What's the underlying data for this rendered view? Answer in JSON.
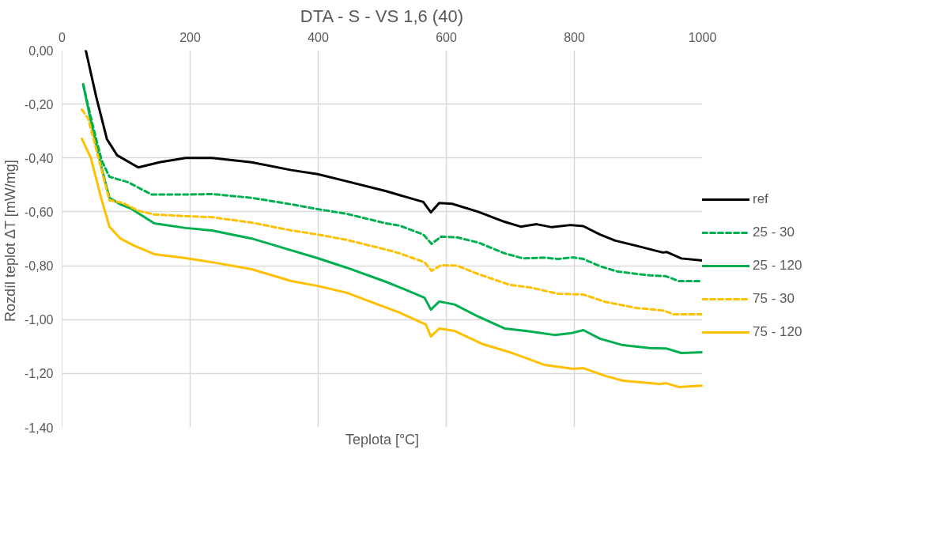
{
  "chart_data": {
    "type": "line",
    "title": "DTA - S - VS 1,6 (40)",
    "xlabel": "Teplota [°C]",
    "ylabel": "Rozdíl teplot ΔT  [mW/mg]",
    "xlim": [
      0,
      1000
    ],
    "xticks": [
      0,
      200,
      400,
      600,
      800,
      1000
    ],
    "ylim": [
      -1.4,
      0
    ],
    "yticks": [
      {
        "value": -1.4,
        "label": "-1,40"
      },
      {
        "value": -1.2,
        "label": "-1,20"
      },
      {
        "value": -1.0,
        "label": "-1,00"
      },
      {
        "value": -0.8,
        "label": "-0,80"
      },
      {
        "value": -0.6,
        "label": "-0,60"
      },
      {
        "value": -0.4,
        "label": "-0,40"
      },
      {
        "value": -0.2,
        "label": "-0,20"
      },
      {
        "value": 0,
        "label": "0,00"
      }
    ],
    "grid": true,
    "legend": "right",
    "marker": "none",
    "series": [
      {
        "name": "ref",
        "color": "#000000",
        "line_style": "solid",
        "x": [
          37,
          53,
          70,
          86,
          119,
          152,
          193,
          234,
          296,
          358,
          399,
          440,
          506,
          527,
          564,
          576,
          589,
          609,
          650,
          691,
          716,
          741,
          765,
          794,
          814,
          840,
          864,
          897,
          938,
          944,
          967,
          1000
        ],
        "values": [
          0.0,
          -0.17,
          -0.33,
          -0.39,
          -0.435,
          -0.416,
          -0.4,
          -0.4,
          -0.416,
          -0.445,
          -0.46,
          -0.484,
          -0.523,
          -0.538,
          -0.563,
          -0.602,
          -0.567,
          -0.57,
          -0.6,
          -0.637,
          -0.655,
          -0.646,
          -0.657,
          -0.649,
          -0.653,
          -0.684,
          -0.707,
          -0.726,
          -0.751,
          -0.749,
          -0.773,
          -0.781
        ]
      },
      {
        "name": "25 - 30",
        "color": "#00b050",
        "line_style": "dashed",
        "x": [
          33,
          49,
          62,
          74,
          103,
          140,
          193,
          234,
          296,
          358,
          399,
          444,
          506,
          527,
          564,
          577,
          592,
          617,
          650,
          691,
          720,
          753,
          774,
          798,
          814,
          840,
          868,
          918,
          943,
          963,
          1000
        ],
        "values": [
          -0.127,
          -0.29,
          -0.41,
          -0.47,
          -0.49,
          -0.536,
          -0.536,
          -0.534,
          -0.548,
          -0.572,
          -0.59,
          -0.607,
          -0.643,
          -0.651,
          -0.684,
          -0.719,
          -0.692,
          -0.695,
          -0.714,
          -0.754,
          -0.773,
          -0.77,
          -0.775,
          -0.769,
          -0.775,
          -0.802,
          -0.822,
          -0.836,
          -0.839,
          -0.857,
          -0.857
        ]
      },
      {
        "name": "25 - 120",
        "color": "#00b050",
        "line_style": "solid",
        "x": [
          33,
          45,
          62,
          74,
          91,
          107,
          144,
          193,
          234,
          296,
          358,
          399,
          444,
          506,
          527,
          566,
          576,
          589,
          613,
          650,
          691,
          724,
          769,
          794,
          814,
          840,
          876,
          918,
          943,
          967,
          1000
        ],
        "values": [
          -0.127,
          -0.264,
          -0.44,
          -0.548,
          -0.572,
          -0.587,
          -0.643,
          -0.66,
          -0.669,
          -0.699,
          -0.743,
          -0.772,
          -0.807,
          -0.86,
          -0.88,
          -0.919,
          -0.963,
          -0.933,
          -0.944,
          -0.989,
          -1.033,
          -1.042,
          -1.057,
          -1.051,
          -1.039,
          -1.071,
          -1.095,
          -1.106,
          -1.107,
          -1.124,
          -1.121
        ]
      },
      {
        "name": "75 - 30",
        "color": "#ffc000",
        "line_style": "dashed",
        "x": [
          31,
          41,
          58,
          74,
          95,
          119,
          144,
          193,
          234,
          296,
          358,
          399,
          444,
          506,
          527,
          566,
          577,
          592,
          617,
          650,
          699,
          732,
          774,
          814,
          848,
          897,
          938,
          955,
          1000
        ],
        "values": [
          -0.22,
          -0.255,
          -0.41,
          -0.557,
          -0.567,
          -0.596,
          -0.61,
          -0.616,
          -0.62,
          -0.64,
          -0.669,
          -0.684,
          -0.704,
          -0.74,
          -0.754,
          -0.787,
          -0.819,
          -0.798,
          -0.8,
          -0.831,
          -0.871,
          -0.881,
          -0.904,
          -0.907,
          -0.934,
          -0.957,
          -0.966,
          -0.98,
          -0.98
        ]
      },
      {
        "name": "75 - 120",
        "color": "#ffc000",
        "line_style": "solid",
        "x": [
          31,
          45,
          62,
          74,
          91,
          111,
          144,
          193,
          234,
          296,
          358,
          399,
          444,
          527,
          568,
          576,
          589,
          613,
          658,
          699,
          753,
          798,
          814,
          848,
          876,
          934,
          943,
          963,
          1000
        ],
        "values": [
          -0.329,
          -0.4,
          -0.557,
          -0.655,
          -0.699,
          -0.724,
          -0.757,
          -0.772,
          -0.787,
          -0.813,
          -0.857,
          -0.875,
          -0.9,
          -0.974,
          -1.018,
          -1.063,
          -1.033,
          -1.042,
          -1.092,
          -1.121,
          -1.168,
          -1.183,
          -1.18,
          -1.209,
          -1.227,
          -1.239,
          -1.236,
          -1.25,
          -1.245
        ]
      }
    ]
  }
}
